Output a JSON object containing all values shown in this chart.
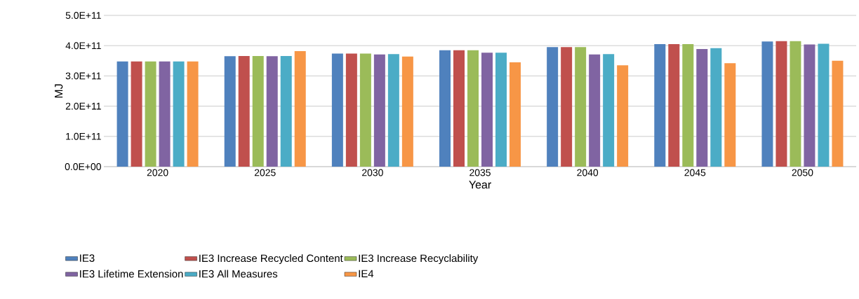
{
  "chart_data": {
    "type": "bar",
    "xlabel": "Year",
    "ylabel": "MJ",
    "categories": [
      "2020",
      "2025",
      "2030",
      "2035",
      "2040",
      "2045",
      "2050"
    ],
    "series": [
      {
        "name": "IE3",
        "color": "#4f81bd",
        "values": [
          348000000000,
          365000000000,
          374000000000,
          385000000000,
          395000000000,
          405000000000,
          414000000000
        ]
      },
      {
        "name": "IE3 Increase Recycled Content",
        "color": "#c0504d",
        "values": [
          348000000000,
          366000000000,
          374000000000,
          385000000000,
          395000000000,
          405000000000,
          415000000000
        ]
      },
      {
        "name": "IE3 Increase Recyclability",
        "color": "#9bbb59",
        "values": [
          348000000000,
          366000000000,
          374000000000,
          385000000000,
          395000000000,
          405000000000,
          415000000000
        ]
      },
      {
        "name": "IE3 Lifetime Extension",
        "color": "#8064a2",
        "values": [
          348000000000,
          365000000000,
          371000000000,
          377000000000,
          371000000000,
          389000000000,
          404000000000
        ]
      },
      {
        "name": "IE3 All Measures",
        "color": "#4bacc6",
        "values": [
          348000000000,
          366000000000,
          372000000000,
          377000000000,
          372000000000,
          392000000000,
          406000000000
        ]
      },
      {
        "name": "IE4",
        "color": "#f79646",
        "values": [
          348000000000,
          382000000000,
          364000000000,
          345000000000,
          335000000000,
          342000000000,
          350000000000
        ]
      }
    ],
    "ylim": [
      0,
      500000000000
    ],
    "yticks": [
      {
        "value": 0,
        "label": "0.0E+00"
      },
      {
        "value": 100000000000,
        "label": "1.0E+11"
      },
      {
        "value": 200000000000,
        "label": "2.0E+11"
      },
      {
        "value": 300000000000,
        "label": "3.0E+11"
      },
      {
        "value": 400000000000,
        "label": "4.0E+11"
      },
      {
        "value": 500000000000,
        "label": "5.0E+11"
      }
    ],
    "grid": "y",
    "legend": "bottom"
  }
}
